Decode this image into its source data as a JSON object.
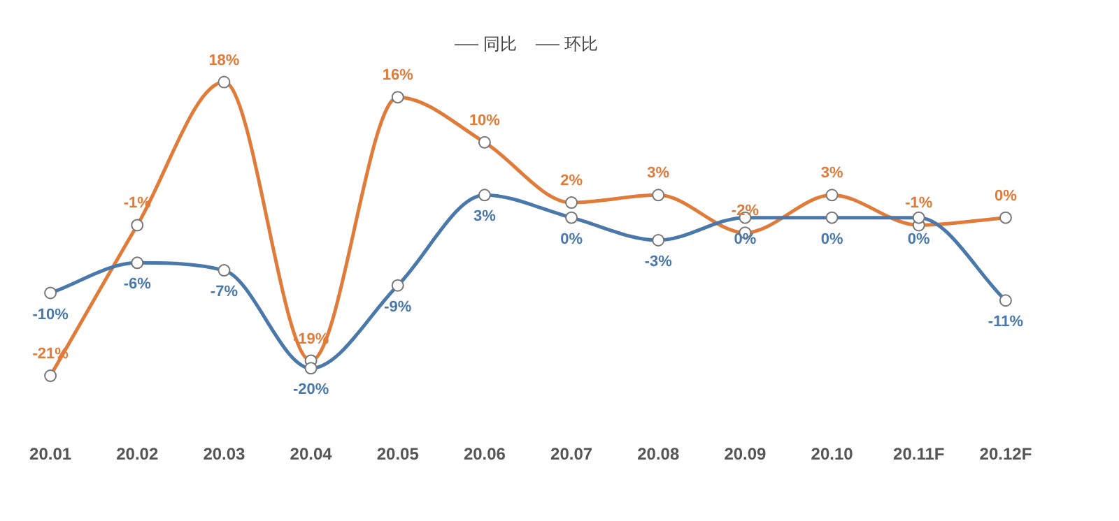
{
  "chart_data": {
    "type": "line",
    "tick_labels": "x",
    "legend": "top",
    "marker": "circle",
    "categories": [
      "20.01",
      "20.02",
      "20.03",
      "20.04",
      "20.05",
      "20.06",
      "20.07",
      "20.08",
      "20.09",
      "20.10",
      "20.11F",
      "20.12F"
    ],
    "series": [
      {
        "name": "同比",
        "color": "#4a78aa",
        "values": [
          -10,
          -6,
          -7,
          -20,
          -9,
          3,
          0,
          -3,
          0,
          0,
          0,
          -11
        ],
        "value_labels": [
          "-10%",
          "-6%",
          "-7%",
          "-20%",
          "-9%",
          "3%",
          "0%",
          "-3%",
          "0%",
          "0%",
          "0%",
          "-11%"
        ]
      },
      {
        "name": "环比",
        "color": "#e07b39",
        "values": [
          -21,
          -1,
          18,
          -19,
          16,
          10,
          2,
          3,
          -2,
          3,
          -1,
          0
        ],
        "value_labels": [
          "-21%",
          "-1%",
          "18%",
          "-19%",
          "16%",
          "10%",
          "2%",
          "3%",
          "-2%",
          "3%",
          "-1%",
          "0%"
        ]
      }
    ]
  }
}
